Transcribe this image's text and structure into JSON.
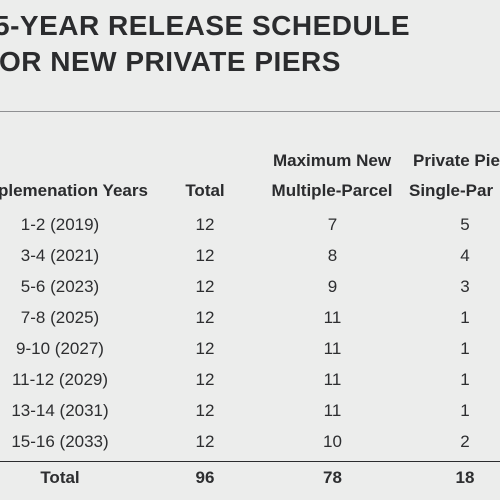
{
  "title": {
    "line1": "5-YEAR RELEASE SCHEDULE",
    "line2": "OR NEW PRIVATE PIERS"
  },
  "headers": {
    "years": "plemenation Years",
    "total": "Total",
    "multi_top": "Maximum New",
    "multi_bottom": "Multiple-Parcel",
    "single_top": "Private Pie",
    "single_bottom": "Single-Par"
  },
  "rows": [
    {
      "years": "1-2  (2019)",
      "total": "12",
      "multi": "7",
      "single": "5"
    },
    {
      "years": "3-4  (2021)",
      "total": "12",
      "multi": "8",
      "single": "4"
    },
    {
      "years": "5-6  (2023)",
      "total": "12",
      "multi": "9",
      "single": "3"
    },
    {
      "years": "7-8  (2025)",
      "total": "12",
      "multi": "11",
      "single": "1"
    },
    {
      "years": "9-10  (2027)",
      "total": "12",
      "multi": "11",
      "single": "1"
    },
    {
      "years": "11-12  (2029)",
      "total": "12",
      "multi": "11",
      "single": "1"
    },
    {
      "years": "13-14  (2031)",
      "total": "12",
      "multi": "11",
      "single": "1"
    },
    {
      "years": "15-16  (2033)",
      "total": "12",
      "multi": "10",
      "single": "2"
    }
  ],
  "totals": {
    "label": "Total",
    "total": "96",
    "multi": "78",
    "single": "18"
  }
}
